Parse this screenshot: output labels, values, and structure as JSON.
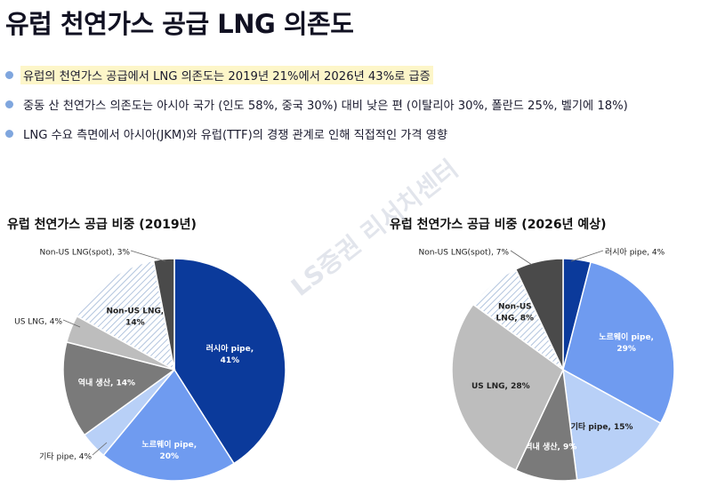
{
  "page": {
    "title": "유럽 천연가스 공급 LNG 의존도",
    "watermark": "LS증권 리서치센터"
  },
  "bullets": [
    {
      "text": "유럽의 천연가스 공급에서 LNG 의존도는 2019년 21%에서 2026년 43%로 급증",
      "highlight": true
    },
    {
      "text": "중동 산 천연가스 의존도는 아시아 국가 (인도 58%, 중국 30%) 대비 낮은 편 (이탈리아 30%, 폴란드 25%, 벨기에 18%)",
      "highlight": false
    },
    {
      "text": "LNG 수요 측면에서 아시아(JKM)와 유럽(TTF)의 경쟁 관계로 인해 직접적인 가격 영향",
      "highlight": false
    }
  ],
  "colors": {
    "bullet_dot": "#7fa6de",
    "highlight": "#fdf6c9",
    "russia_pipe": "#0b3a9b",
    "norway_pipe": "#6f9bf0",
    "other_pipe": "#b8d0f7",
    "domestic": "#7a7a7a",
    "us_lng": "#bdbdbd",
    "non_us_lng": "#c5d3e6",
    "non_us_lng_spot": "#4a4a4a"
  },
  "chart_data": [
    {
      "type": "pie",
      "title": "유럽 천연가스 공급 비중 (2019년)",
      "slices": [
        {
          "label": "러시아 pipe",
          "value": 41,
          "value_text": "41%",
          "color": "#0b3a9b",
          "pattern": "solid",
          "label_inside": true,
          "label_color": "#ffffff",
          "text": "러시아 pipe,\n41%"
        },
        {
          "label": "노르웨이 pipe",
          "value": 20,
          "value_text": "20%",
          "color": "#6f9bf0",
          "pattern": "solid",
          "label_inside": true,
          "label_color": "#ffffff",
          "text": "노르웨이 pipe,\n20%"
        },
        {
          "label": "기타 pipe",
          "value": 4,
          "value_text": "4%",
          "color": "#b8d0f7",
          "pattern": "solid",
          "label_inside": false,
          "text": "기타 pipe, 4%"
        },
        {
          "label": "역내 생산",
          "value": 14,
          "value_text": "14%",
          "color": "#7a7a7a",
          "pattern": "solid",
          "label_inside": true,
          "label_color": "#ffffff",
          "text": "역내 생산, 14%"
        },
        {
          "label": "US LNG",
          "value": 4,
          "value_text": "4%",
          "color": "#bdbdbd",
          "pattern": "solid",
          "label_inside": false,
          "text": "US LNG, 4%"
        },
        {
          "label": "Non-US LNG",
          "value": 14,
          "value_text": "14%",
          "color": "#c5d3e6",
          "pattern": "hatch",
          "label_inside": true,
          "label_color": "#222222",
          "text": "Non-US LNG,\n14%"
        },
        {
          "label": "Non-US LNG(spot)",
          "value": 3,
          "value_text": "3%",
          "color": "#4a4a4a",
          "pattern": "solid",
          "label_inside": false,
          "text": "Non-US LNG(spot), 3%"
        }
      ]
    },
    {
      "type": "pie",
      "title": "유럽 천연가스 공급 비중 (2026년 예상)",
      "slices": [
        {
          "label": "러시아 pipe",
          "value": 4,
          "value_text": "4%",
          "color": "#0b3a9b",
          "pattern": "solid",
          "label_inside": false,
          "text": "러시아 pipe, 4%"
        },
        {
          "label": "노르웨이 pipe",
          "value": 29,
          "value_text": "29%",
          "color": "#6f9bf0",
          "pattern": "solid",
          "label_inside": true,
          "label_color": "#ffffff",
          "text": "노르웨이 pipe,\n29%"
        },
        {
          "label": "기타 pipe",
          "value": 15,
          "value_text": "15%",
          "color": "#b8d0f7",
          "pattern": "solid",
          "label_inside": true,
          "label_color": "#222222",
          "text": "기타 pipe, 15%"
        },
        {
          "label": "역내 생산",
          "value": 9,
          "value_text": "9%",
          "color": "#7a7a7a",
          "pattern": "solid",
          "label_inside": true,
          "label_color": "#ffffff",
          "text": "역내 생산, 9%"
        },
        {
          "label": "US LNG",
          "value": 28,
          "value_text": "28%",
          "color": "#bdbdbd",
          "pattern": "solid",
          "label_inside": true,
          "label_color": "#222222",
          "text": "US LNG, 28%"
        },
        {
          "label": "Non-US LNG",
          "value": 8,
          "value_text": "8%",
          "color": "#c5d3e6",
          "pattern": "hatch",
          "label_inside": true,
          "label_color": "#222222",
          "text": "Non-US\nLNG, 8%"
        },
        {
          "label": "Non-US LNG(spot)",
          "value": 7,
          "value_text": "7%",
          "color": "#4a4a4a",
          "pattern": "solid",
          "label_inside": false,
          "text": "Non-US LNG(spot), 7%"
        }
      ]
    }
  ]
}
